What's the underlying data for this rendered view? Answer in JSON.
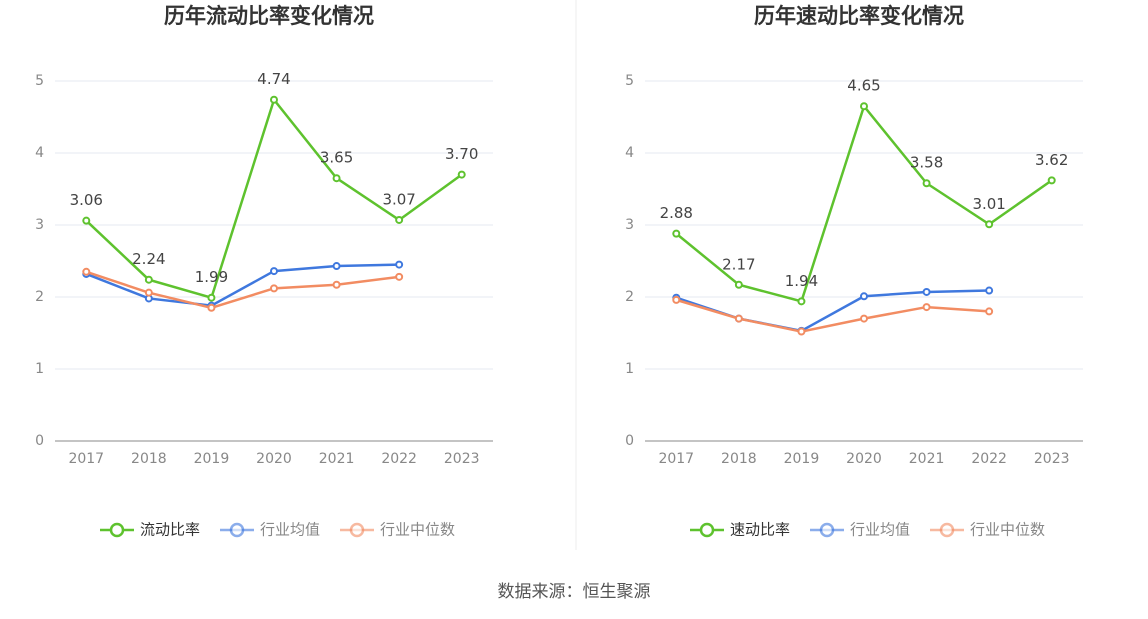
{
  "chart_data": [
    {
      "type": "line",
      "title": "历年流动比率变化情况",
      "categories": [
        "2017",
        "2018",
        "2019",
        "2020",
        "2021",
        "2022",
        "2023"
      ],
      "series": [
        {
          "name": "流动比率",
          "color": "#5ec22e",
          "values": [
            3.06,
            2.24,
            1.99,
            4.74,
            3.65,
            3.07,
            3.7
          ],
          "value_labels": [
            "3.06",
            "2.24",
            "1.99",
            "4.74",
            "3.65",
            "3.07",
            "3.70"
          ]
        },
        {
          "name": "行业均值",
          "color": "#3f78de",
          "values": [
            2.32,
            1.98,
            1.88,
            2.36,
            2.43,
            2.45,
            null
          ]
        },
        {
          "name": "行业中位数",
          "color": "#f28c62",
          "values": [
            2.35,
            2.06,
            1.85,
            2.12,
            2.17,
            2.28,
            null
          ]
        }
      ],
      "ylim": [
        0,
        5
      ],
      "yticks": [
        0,
        1,
        2,
        3,
        4,
        5
      ],
      "grid": true,
      "legend": "bottom"
    },
    {
      "type": "line",
      "title": "历年速动比率变化情况",
      "categories": [
        "2017",
        "2018",
        "2019",
        "2020",
        "2021",
        "2022",
        "2023"
      ],
      "series": [
        {
          "name": "速动比率",
          "color": "#5ec22e",
          "values": [
            2.88,
            2.17,
            1.94,
            4.65,
            3.58,
            3.01,
            3.62
          ],
          "value_labels": [
            "2.88",
            "2.17",
            "1.94",
            "4.65",
            "3.58",
            "3.01",
            "3.62"
          ]
        },
        {
          "name": "行业均值",
          "color": "#3f78de",
          "values": [
            1.99,
            1.7,
            1.53,
            2.01,
            2.07,
            2.09,
            null
          ]
        },
        {
          "name": "行业中位数",
          "color": "#f28c62",
          "values": [
            1.96,
            1.7,
            1.52,
            1.7,
            1.86,
            1.8,
            null
          ]
        }
      ],
      "ylim": [
        0,
        5
      ],
      "yticks": [
        0,
        1,
        2,
        3,
        4,
        5
      ],
      "grid": true,
      "legend": "bottom"
    }
  ],
  "source": "数据来源：恒生聚源"
}
